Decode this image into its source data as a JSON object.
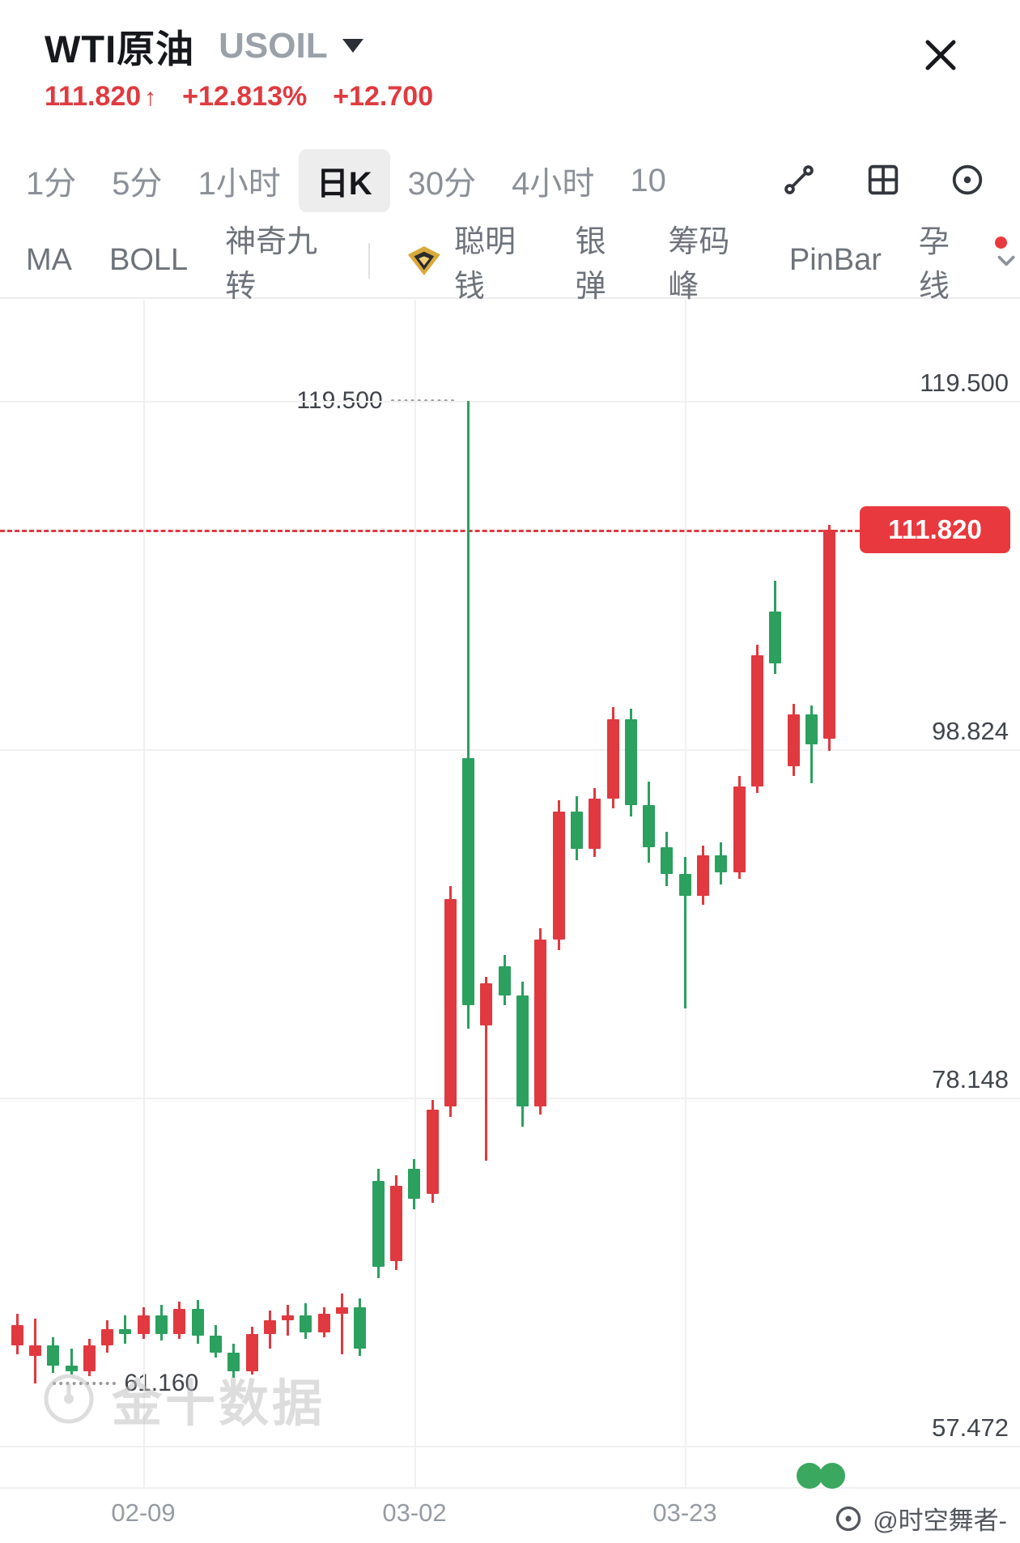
{
  "header": {
    "title": "WTI原油",
    "symbol": "USOIL",
    "price": "111.820",
    "arrow": "↑",
    "change_percent": "+12.813%",
    "change_value": "+12.700"
  },
  "tabs": {
    "items": [
      {
        "label": "1分",
        "selected": false
      },
      {
        "label": "5分",
        "selected": false
      },
      {
        "label": "1小时",
        "selected": false
      },
      {
        "label": "日K",
        "selected": true
      },
      {
        "label": "30分",
        "selected": false
      },
      {
        "label": "4小时",
        "selected": false
      },
      {
        "label": "10",
        "selected": false
      }
    ]
  },
  "indicators": {
    "left": [
      "MA",
      "BOLL",
      "神奇九转"
    ],
    "right": [
      "聪明钱",
      "银弹",
      "筹码峰",
      "PinBar",
      "孕线"
    ]
  },
  "chart_data": {
    "type": "candlestick",
    "symbol": "USOIL",
    "timeframe": "日K",
    "price_max": 125.5,
    "price_min": 55.0,
    "up_color": "#e0393f",
    "down_color": "#2ba05f",
    "grid": true,
    "current_price": 111.82,
    "current_price_label": "111.820",
    "y_axis_labels": [
      {
        "label": "119.500",
        "value": 119.5
      },
      {
        "label": "98.824",
        "value": 98.824
      },
      {
        "label": "78.148",
        "value": 78.148
      },
      {
        "label": "57.472",
        "value": 57.472
      }
    ],
    "x_axis_labels": [
      {
        "label": "02-09",
        "index": 7
      },
      {
        "label": "03-02",
        "index": 22
      },
      {
        "label": "03-23",
        "index": 37
      }
    ],
    "high_marker": {
      "label": "119.500",
      "value": 119.5,
      "index": 25
    },
    "low_marker": {
      "label": "61.160",
      "value": 61.16,
      "index": 1
    },
    "candles": [
      {
        "d": "01-31",
        "o": 63.4,
        "h": 65.3,
        "l": 62.9,
        "c": 64.6
      },
      {
        "d": "02-01",
        "o": 62.8,
        "h": 65.0,
        "l": 61.16,
        "c": 63.4
      },
      {
        "d": "02-02",
        "o": 63.4,
        "h": 63.9,
        "l": 61.8,
        "c": 62.2
      },
      {
        "d": "02-03",
        "o": 62.2,
        "h": 63.2,
        "l": 61.7,
        "c": 61.9
      },
      {
        "d": "02-04",
        "o": 61.9,
        "h": 63.8,
        "l": 61.6,
        "c": 63.4
      },
      {
        "d": "02-07",
        "o": 63.4,
        "h": 64.9,
        "l": 63.0,
        "c": 64.4
      },
      {
        "d": "02-08",
        "o": 64.4,
        "h": 65.2,
        "l": 63.5,
        "c": 64.1
      },
      {
        "d": "02-09",
        "o": 64.1,
        "h": 65.7,
        "l": 63.8,
        "c": 65.2
      },
      {
        "d": "02-10",
        "o": 65.2,
        "h": 65.8,
        "l": 63.7,
        "c": 64.1
      },
      {
        "d": "02-11",
        "o": 64.1,
        "h": 66.0,
        "l": 63.8,
        "c": 65.6
      },
      {
        "d": "02-14",
        "o": 65.6,
        "h": 66.1,
        "l": 63.5,
        "c": 64.0
      },
      {
        "d": "02-15",
        "o": 64.0,
        "h": 64.6,
        "l": 62.7,
        "c": 63.0
      },
      {
        "d": "02-16",
        "o": 63.0,
        "h": 63.5,
        "l": 61.5,
        "c": 61.9
      },
      {
        "d": "02-17",
        "o": 61.9,
        "h": 64.5,
        "l": 61.7,
        "c": 64.1
      },
      {
        "d": "02-18",
        "o": 64.1,
        "h": 65.5,
        "l": 63.2,
        "c": 64.9
      },
      {
        "d": "02-21",
        "o": 64.9,
        "h": 65.8,
        "l": 64.0,
        "c": 65.2
      },
      {
        "d": "02-22",
        "o": 65.2,
        "h": 65.9,
        "l": 63.8,
        "c": 64.2
      },
      {
        "d": "02-23",
        "o": 64.2,
        "h": 65.7,
        "l": 63.9,
        "c": 65.3
      },
      {
        "d": "02-24",
        "o": 65.3,
        "h": 66.5,
        "l": 62.9,
        "c": 65.7
      },
      {
        "d": "02-25",
        "o": 65.7,
        "h": 66.2,
        "l": 62.8,
        "c": 63.2
      },
      {
        "d": "02-28",
        "o": 73.2,
        "h": 73.9,
        "l": 67.4,
        "c": 68.1
      },
      {
        "d": "03-01",
        "o": 68.4,
        "h": 73.5,
        "l": 67.9,
        "c": 72.9
      },
      {
        "d": "03-02",
        "o": 73.9,
        "h": 74.5,
        "l": 71.5,
        "c": 72.1
      },
      {
        "d": "03-03",
        "o": 72.4,
        "h": 78.0,
        "l": 71.9,
        "c": 77.4
      },
      {
        "d": "03-04",
        "o": 77.6,
        "h": 90.7,
        "l": 77.0,
        "c": 89.9
      },
      {
        "d": "03-07",
        "o": 98.3,
        "h": 119.5,
        "l": 82.2,
        "c": 83.6
      },
      {
        "d": "03-08",
        "o": 82.4,
        "h": 85.3,
        "l": 74.4,
        "c": 84.9
      },
      {
        "d": "03-09",
        "o": 85.9,
        "h": 86.6,
        "l": 83.6,
        "c": 84.2
      },
      {
        "d": "03-10",
        "o": 84.2,
        "h": 85.0,
        "l": 76.4,
        "c": 77.6
      },
      {
        "d": "03-11",
        "o": 77.6,
        "h": 88.2,
        "l": 77.1,
        "c": 87.5
      },
      {
        "d": "03-14",
        "o": 87.5,
        "h": 95.8,
        "l": 86.9,
        "c": 95.1
      },
      {
        "d": "03-15",
        "o": 95.1,
        "h": 96.0,
        "l": 92.2,
        "c": 92.9
      },
      {
        "d": "03-16",
        "o": 92.9,
        "h": 96.5,
        "l": 92.4,
        "c": 95.9
      },
      {
        "d": "03-17",
        "o": 95.9,
        "h": 101.3,
        "l": 95.3,
        "c": 100.6
      },
      {
        "d": "03-18",
        "o": 100.6,
        "h": 101.2,
        "l": 94.8,
        "c": 95.5
      },
      {
        "d": "03-21",
        "o": 95.5,
        "h": 96.9,
        "l": 92.1,
        "c": 93.0
      },
      {
        "d": "03-22",
        "o": 93.0,
        "h": 93.9,
        "l": 90.7,
        "c": 91.4
      },
      {
        "d": "03-23",
        "o": 91.4,
        "h": 92.4,
        "l": 83.4,
        "c": 90.1
      },
      {
        "d": "03-24",
        "o": 90.1,
        "h": 93.1,
        "l": 89.6,
        "c": 92.5
      },
      {
        "d": "03-25",
        "o": 92.5,
        "h": 93.3,
        "l": 90.8,
        "c": 91.5
      },
      {
        "d": "03-28",
        "o": 91.5,
        "h": 97.2,
        "l": 91.1,
        "c": 96.6
      },
      {
        "d": "03-29",
        "o": 96.6,
        "h": 105.0,
        "l": 96.2,
        "c": 104.4
      },
      {
        "d": "03-30",
        "o": 107.0,
        "h": 108.8,
        "l": 103.3,
        "c": 103.9
      },
      {
        "d": "03-31",
        "o": 97.8,
        "h": 101.5,
        "l": 97.2,
        "c": 100.9
      },
      {
        "d": "04-01",
        "o": 100.9,
        "h": 101.4,
        "l": 96.8,
        "c": 99.12
      },
      {
        "d": "04-04",
        "o": 99.45,
        "h": 112.15,
        "l": 98.7,
        "c": 111.82
      }
    ]
  },
  "watermark": {
    "text": "金十数据"
  },
  "footer": {
    "handle": "@时空舞者-"
  }
}
